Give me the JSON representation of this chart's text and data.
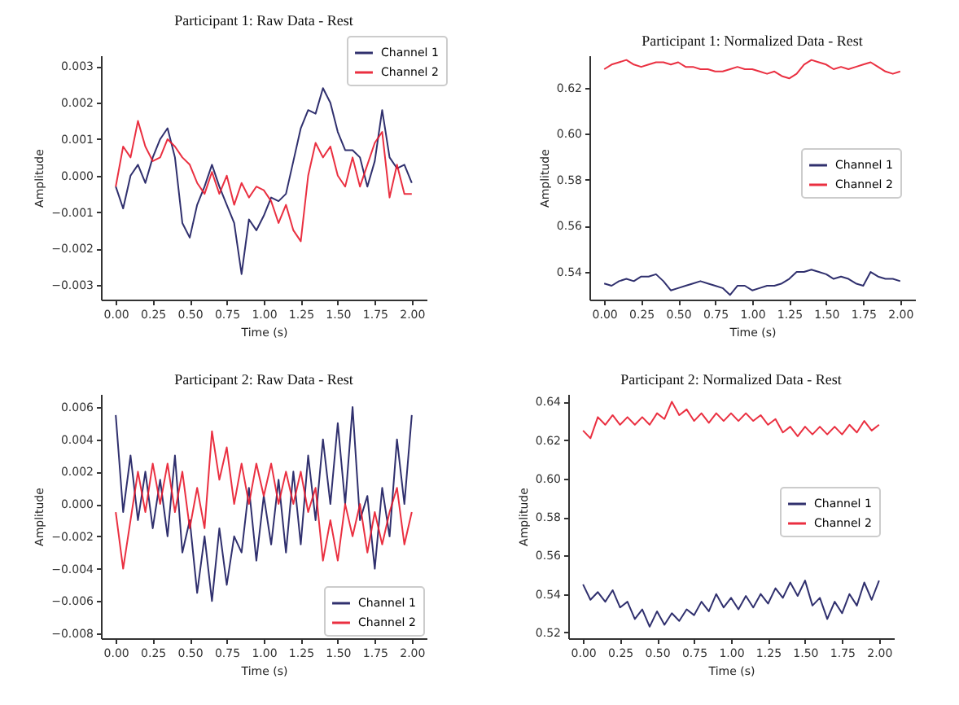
{
  "chart_data": [
    {
      "type": "line",
      "title": "Participant 1: Raw Data - Rest",
      "xlabel": "Time (s)",
      "ylabel": "Amplitude",
      "legend": "top right",
      "x": [
        0,
        0.05,
        0.1,
        0.15,
        0.2,
        0.25,
        0.3,
        0.35,
        0.4,
        0.45,
        0.5,
        0.55,
        0.6,
        0.65,
        0.7,
        0.75,
        0.8,
        0.85,
        0.9,
        0.95,
        1.0,
        1.05,
        1.1,
        1.15,
        1.2,
        1.25,
        1.3,
        1.35,
        1.4,
        1.45,
        1.5,
        1.55,
        1.6,
        1.65,
        1.7,
        1.75,
        1.8,
        1.85,
        1.9,
        1.95,
        2.0
      ],
      "series": [
        {
          "name": "Channel 1",
          "color": "#1a1a5e",
          "values": [
            -0.0003,
            -0.0009,
            0.0,
            0.0003,
            -0.0002,
            0.0005,
            0.001,
            0.0013,
            0.0005,
            -0.0013,
            -0.0017,
            -0.0008,
            -0.0003,
            0.0003,
            -0.0003,
            -0.0008,
            -0.0013,
            -0.0027,
            -0.0012,
            -0.0015,
            -0.0011,
            -0.0006,
            -0.0007,
            -0.0005,
            0.0004,
            0.0013,
            0.0018,
            0.0017,
            0.0024,
            0.002,
            0.0012,
            0.0007,
            0.0007,
            0.0005,
            -0.0003,
            0.0004,
            0.0018,
            0.0005,
            0.0002,
            0.0003,
            -0.0002
          ]
        },
        {
          "name": "Channel 2",
          "color": "#e8192c",
          "values": [
            -0.0003,
            0.0008,
            0.0005,
            0.0015,
            0.0008,
            0.0004,
            0.0005,
            0.001,
            0.0008,
            0.0005,
            0.0003,
            -0.0002,
            -0.0005,
            0.0001,
            -0.0005,
            0.0,
            -0.0008,
            -0.0002,
            -0.0006,
            -0.0003,
            -0.0004,
            -0.0007,
            -0.0013,
            -0.0008,
            -0.0015,
            -0.0018,
            0.0,
            0.0009,
            0.0005,
            0.0008,
            0.0,
            -0.0003,
            0.0005,
            -0.0003,
            0.0003,
            0.0009,
            0.0012,
            -0.0006,
            0.0003,
            -0.0005,
            -0.0005
          ]
        }
      ],
      "xlim": [
        -0.1,
        2.1
      ],
      "xticks": [
        {
          "value": 0,
          "label": "0.00"
        },
        {
          "value": 0.25,
          "label": "0.25"
        },
        {
          "value": 0.5,
          "label": "0.50"
        },
        {
          "value": 0.75,
          "label": "0.75"
        },
        {
          "value": 1,
          "label": "1.00"
        },
        {
          "value": 1.25,
          "label": "1.25"
        },
        {
          "value": 1.5,
          "label": "1.50"
        },
        {
          "value": 1.75,
          "label": "1.75"
        },
        {
          "value": 2,
          "label": "2.00"
        }
      ],
      "ylim": [
        -0.0034,
        0.0033
      ],
      "yticks": [
        {
          "value": -0.003,
          "label": "−0.003"
        },
        {
          "value": -0.002,
          "label": "−0.002"
        },
        {
          "value": -0.001,
          "label": "−0.001"
        },
        {
          "value": 0,
          "label": "0.000"
        },
        {
          "value": 0.001,
          "label": "0.001"
        },
        {
          "value": 0.002,
          "label": "0.002"
        },
        {
          "value": 0.003,
          "label": "0.003"
        }
      ]
    },
    {
      "type": "line",
      "title": "Participant 1: Normalized Data - Rest",
      "xlabel": "Time (s)",
      "ylabel": "Amplitude",
      "legend": "right",
      "x": [
        0,
        0.05,
        0.1,
        0.15,
        0.2,
        0.25,
        0.3,
        0.35,
        0.4,
        0.45,
        0.5,
        0.55,
        0.6,
        0.65,
        0.7,
        0.75,
        0.8,
        0.85,
        0.9,
        0.95,
        1.0,
        1.05,
        1.1,
        1.15,
        1.2,
        1.25,
        1.3,
        1.35,
        1.4,
        1.45,
        1.5,
        1.55,
        1.6,
        1.65,
        1.7,
        1.75,
        1.8,
        1.85,
        1.9,
        1.95,
        2.0
      ],
      "series": [
        {
          "name": "Channel 1",
          "color": "#1a1a5e",
          "values": [
            0.535,
            0.534,
            0.536,
            0.537,
            0.536,
            0.538,
            0.538,
            0.539,
            0.536,
            0.532,
            0.533,
            0.534,
            0.535,
            0.536,
            0.535,
            0.534,
            0.533,
            0.53,
            0.534,
            0.534,
            0.532,
            0.533,
            0.534,
            0.534,
            0.535,
            0.537,
            0.54,
            0.54,
            0.541,
            0.54,
            0.539,
            0.537,
            0.538,
            0.537,
            0.535,
            0.534,
            0.54,
            0.538,
            0.537,
            0.537,
            0.536
          ]
        },
        {
          "name": "Channel 2",
          "color": "#e8192c",
          "values": [
            0.628,
            0.63,
            0.631,
            0.632,
            0.63,
            0.629,
            0.63,
            0.631,
            0.631,
            0.63,
            0.631,
            0.629,
            0.629,
            0.628,
            0.628,
            0.627,
            0.627,
            0.628,
            0.629,
            0.628,
            0.628,
            0.627,
            0.626,
            0.627,
            0.625,
            0.624,
            0.626,
            0.63,
            0.632,
            0.631,
            0.63,
            0.628,
            0.629,
            0.628,
            0.629,
            0.63,
            0.631,
            0.629,
            0.627,
            0.626,
            0.627
          ]
        }
      ],
      "xlim": [
        -0.1,
        2.1
      ],
      "xticks": [
        {
          "value": 0,
          "label": "0.00"
        },
        {
          "value": 0.25,
          "label": "0.25"
        },
        {
          "value": 0.5,
          "label": "0.50"
        },
        {
          "value": 0.75,
          "label": "0.75"
        },
        {
          "value": 1,
          "label": "1.00"
        },
        {
          "value": 1.25,
          "label": "1.25"
        },
        {
          "value": 1.5,
          "label": "1.50"
        },
        {
          "value": 1.75,
          "label": "1.75"
        },
        {
          "value": 2,
          "label": "2.00"
        }
      ],
      "ylim": [
        0.528,
        0.634
      ],
      "yticks": [
        {
          "value": 0.54,
          "label": "0.54"
        },
        {
          "value": 0.56,
          "label": "0.56"
        },
        {
          "value": 0.58,
          "label": "0.58"
        },
        {
          "value": 0.6,
          "label": "0.60"
        },
        {
          "value": 0.62,
          "label": "0.62"
        }
      ]
    },
    {
      "type": "line",
      "title": "Participant 2: Raw Data - Rest",
      "xlabel": "Time (s)",
      "ylabel": "Amplitude",
      "legend": "bottom right",
      "x": [
        0,
        0.05,
        0.1,
        0.15,
        0.2,
        0.25,
        0.3,
        0.35,
        0.4,
        0.45,
        0.5,
        0.55,
        0.6,
        0.65,
        0.7,
        0.75,
        0.8,
        0.85,
        0.9,
        0.95,
        1.0,
        1.05,
        1.1,
        1.15,
        1.2,
        1.25,
        1.3,
        1.35,
        1.4,
        1.45,
        1.5,
        1.55,
        1.6,
        1.65,
        1.7,
        1.75,
        1.8,
        1.85,
        1.9,
        1.95,
        2.0
      ],
      "series": [
        {
          "name": "Channel 1",
          "color": "#1a1a5e",
          "values": [
            0.0055,
            -0.0005,
            0.003,
            -0.001,
            0.002,
            -0.0015,
            0.0015,
            -0.002,
            0.003,
            -0.003,
            -0.001,
            -0.0055,
            -0.002,
            -0.006,
            -0.0015,
            -0.005,
            -0.002,
            -0.003,
            0.001,
            -0.0035,
            0.0005,
            -0.0025,
            0.0015,
            -0.003,
            0.002,
            -0.0025,
            0.003,
            -0.001,
            0.004,
            0.0,
            0.005,
            0.0,
            0.006,
            -0.001,
            0.0005,
            -0.004,
            0.001,
            -0.002,
            0.004,
            0.0,
            0.0055
          ]
        },
        {
          "name": "Channel 2",
          "color": "#e8192c",
          "values": [
            -0.0005,
            -0.004,
            -0.001,
            0.002,
            -0.0005,
            0.0025,
            0.0,
            0.0025,
            -0.0005,
            0.002,
            -0.0015,
            0.001,
            -0.0015,
            0.0045,
            0.0015,
            0.0035,
            0.0,
            0.0025,
            0.0,
            0.0025,
            0.0005,
            0.0025,
            0.0,
            0.002,
            0.0,
            0.002,
            -0.0005,
            0.001,
            -0.0035,
            -0.001,
            -0.0035,
            0.0,
            -0.002,
            0.0,
            -0.003,
            -0.0005,
            -0.0025,
            -0.0005,
            0.001,
            -0.0025,
            -0.0005
          ]
        }
      ],
      "xlim": [
        -0.1,
        2.1
      ],
      "xticks": [
        {
          "value": 0,
          "label": "0.00"
        },
        {
          "value": 0.25,
          "label": "0.25"
        },
        {
          "value": 0.5,
          "label": "0.50"
        },
        {
          "value": 0.75,
          "label": "0.75"
        },
        {
          "value": 1,
          "label": "1.00"
        },
        {
          "value": 1.25,
          "label": "1.25"
        },
        {
          "value": 1.5,
          "label": "1.50"
        },
        {
          "value": 1.75,
          "label": "1.75"
        },
        {
          "value": 2,
          "label": "2.00"
        }
      ],
      "ylim": [
        -0.0083,
        0.0068
      ],
      "yticks": [
        {
          "value": -0.008,
          "label": "−0.008"
        },
        {
          "value": -0.006,
          "label": "−0.006"
        },
        {
          "value": -0.004,
          "label": "−0.004"
        },
        {
          "value": -0.002,
          "label": "−0.002"
        },
        {
          "value": 0,
          "label": "0.000"
        },
        {
          "value": 0.002,
          "label": "0.002"
        },
        {
          "value": 0.004,
          "label": "0.004"
        },
        {
          "value": 0.006,
          "label": "0.006"
        }
      ]
    },
    {
      "type": "line",
      "title": "Participant 2: Normalized Data - Rest",
      "xlabel": "Time (s)",
      "ylabel": "Amplitude",
      "legend": "right",
      "x": [
        0,
        0.05,
        0.1,
        0.15,
        0.2,
        0.25,
        0.3,
        0.35,
        0.4,
        0.45,
        0.5,
        0.55,
        0.6,
        0.65,
        0.7,
        0.75,
        0.8,
        0.85,
        0.9,
        0.95,
        1.0,
        1.05,
        1.1,
        1.15,
        1.2,
        1.25,
        1.3,
        1.35,
        1.4,
        1.45,
        1.5,
        1.55,
        1.6,
        1.65,
        1.7,
        1.75,
        1.8,
        1.85,
        1.9,
        1.95,
        2.0
      ],
      "series": [
        {
          "name": "Channel 1",
          "color": "#1a1a5e",
          "values": [
            0.545,
            0.537,
            0.541,
            0.536,
            0.542,
            0.533,
            0.536,
            0.527,
            0.532,
            0.523,
            0.531,
            0.524,
            0.53,
            0.526,
            0.532,
            0.529,
            0.536,
            0.531,
            0.54,
            0.533,
            0.538,
            0.532,
            0.539,
            0.533,
            0.54,
            0.535,
            0.543,
            0.538,
            0.546,
            0.539,
            0.547,
            0.534,
            0.538,
            0.527,
            0.536,
            0.53,
            0.54,
            0.534,
            0.546,
            0.537,
            0.547
          ]
        },
        {
          "name": "Channel 2",
          "color": "#e8192c",
          "values": [
            0.625,
            0.621,
            0.632,
            0.628,
            0.633,
            0.628,
            0.632,
            0.628,
            0.632,
            0.628,
            0.634,
            0.631,
            0.64,
            0.633,
            0.636,
            0.63,
            0.634,
            0.629,
            0.634,
            0.63,
            0.634,
            0.63,
            0.634,
            0.63,
            0.633,
            0.628,
            0.631,
            0.624,
            0.627,
            0.622,
            0.627,
            0.623,
            0.627,
            0.623,
            0.627,
            0.623,
            0.628,
            0.624,
            0.63,
            0.625,
            0.628
          ]
        }
      ],
      "xlim": [
        -0.1,
        2.1
      ],
      "xticks": [
        {
          "value": 0,
          "label": "0.00"
        },
        {
          "value": 0.25,
          "label": "0.25"
        },
        {
          "value": 0.5,
          "label": "0.50"
        },
        {
          "value": 0.75,
          "label": "0.75"
        },
        {
          "value": 1,
          "label": "1.00"
        },
        {
          "value": 1.25,
          "label": "1.25"
        },
        {
          "value": 1.5,
          "label": "1.50"
        },
        {
          "value": 1.75,
          "label": "1.75"
        },
        {
          "value": 2,
          "label": "2.00"
        }
      ],
      "ylim": [
        0.517,
        0.644
      ],
      "yticks": [
        {
          "value": 0.52,
          "label": "0.52"
        },
        {
          "value": 0.54,
          "label": "0.54"
        },
        {
          "value": 0.56,
          "label": "0.56"
        },
        {
          "value": 0.58,
          "label": "0.58"
        },
        {
          "value": 0.6,
          "label": "0.60"
        },
        {
          "value": 0.62,
          "label": "0.62"
        },
        {
          "value": 0.64,
          "label": "0.64"
        }
      ]
    }
  ]
}
